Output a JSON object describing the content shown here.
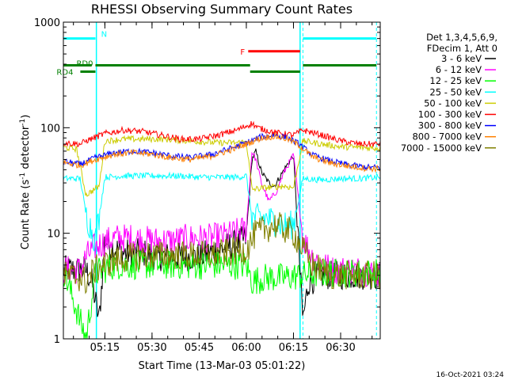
{
  "chart_data": {
    "type": "line",
    "title": "RHESSI Observing Summary Count Rates",
    "xlabel": "Start Time (13-Mar-03 05:01:22)",
    "ylabel_parts": [
      "Count Rate (s",
      "-1",
      " detector",
      "-1",
      ")"
    ],
    "yscale": "log",
    "ylim": [
      1,
      1000
    ],
    "xlim_minutes": [
      5.03,
      6.71
    ],
    "x_tick_labels": [
      "05:15",
      "05:30",
      "05:45",
      "06:00",
      "06:15",
      "06:30"
    ],
    "y_tick_labels": [
      "1",
      "10",
      "100",
      "1000"
    ],
    "legend_header": [
      "Det 1,3,4,5,6,9,",
      "FDecim 1, Att 0"
    ],
    "series": [
      {
        "name": "3 - 6 keV",
        "color": "#000000",
        "points": [
          [
            5.03,
            4.5
          ],
          [
            5.15,
            4.5
          ],
          [
            5.18,
            3.5
          ],
          [
            5.22,
            1.5
          ],
          [
            5.25,
            9
          ],
          [
            5.28,
            7.5
          ],
          [
            5.35,
            6.5
          ],
          [
            5.45,
            6.5
          ],
          [
            5.55,
            6
          ],
          [
            5.65,
            6
          ],
          [
            5.75,
            6
          ],
          [
            5.85,
            7
          ],
          [
            5.95,
            8
          ],
          [
            6.0,
            9
          ],
          [
            6.03,
            50
          ],
          [
            6.05,
            60
          ],
          [
            6.08,
            38
          ],
          [
            6.12,
            30
          ],
          [
            6.15,
            28
          ],
          [
            6.2,
            40
          ],
          [
            6.25,
            55
          ],
          [
            6.3,
            1.5
          ],
          [
            6.33,
            3.5
          ],
          [
            6.4,
            4
          ],
          [
            6.5,
            4
          ],
          [
            6.6,
            4
          ],
          [
            6.71,
            4
          ]
        ]
      },
      {
        "name": "6 - 12 keV",
        "color": "#ff00ff",
        "points": [
          [
            5.03,
            4.5
          ],
          [
            5.12,
            4.5
          ],
          [
            5.15,
            6
          ],
          [
            5.2,
            7.5
          ],
          [
            5.3,
            9
          ],
          [
            5.4,
            9
          ],
          [
            5.5,
            8.5
          ],
          [
            5.6,
            8.5
          ],
          [
            5.7,
            9
          ],
          [
            5.8,
            9
          ],
          [
            5.9,
            9.5
          ],
          [
            6.0,
            11
          ],
          [
            6.03,
            60
          ],
          [
            6.05,
            50
          ],
          [
            6.08,
            30
          ],
          [
            6.12,
            20
          ],
          [
            6.16,
            25
          ],
          [
            6.2,
            38
          ],
          [
            6.25,
            55
          ],
          [
            6.3,
            9
          ],
          [
            6.35,
            6
          ],
          [
            6.45,
            4.5
          ],
          [
            6.6,
            4.5
          ],
          [
            6.71,
            4
          ]
        ]
      },
      {
        "name": "12 - 25 keV",
        "color": "#00ff00",
        "points": [
          [
            5.03,
            4.5
          ],
          [
            5.15,
            1
          ],
          [
            5.2,
            4.2
          ],
          [
            5.3,
            5
          ],
          [
            5.4,
            5
          ],
          [
            5.5,
            5
          ],
          [
            5.6,
            5
          ],
          [
            5.7,
            5
          ],
          [
            5.8,
            5
          ],
          [
            5.9,
            5
          ],
          [
            6.0,
            5
          ],
          [
            6.03,
            3.5
          ],
          [
            6.1,
            3.8
          ],
          [
            6.2,
            3.8
          ],
          [
            6.3,
            4
          ],
          [
            6.4,
            4.2
          ],
          [
            6.5,
            4.2
          ],
          [
            6.6,
            4.2
          ],
          [
            6.71,
            4.2
          ]
        ]
      },
      {
        "name": "25 - 50 keV",
        "color": "#00ffff",
        "points": [
          [
            5.03,
            33
          ],
          [
            5.12,
            33
          ],
          [
            5.15,
            15
          ],
          [
            5.2,
            8.5
          ],
          [
            5.25,
            34
          ],
          [
            5.35,
            35
          ],
          [
            5.45,
            35
          ],
          [
            5.55,
            35
          ],
          [
            5.65,
            35
          ],
          [
            5.75,
            34
          ],
          [
            5.85,
            34
          ],
          [
            5.95,
            34
          ],
          [
            6.0,
            35
          ],
          [
            6.03,
            14
          ],
          [
            6.1,
            14
          ],
          [
            6.2,
            12
          ],
          [
            6.25,
            12
          ],
          [
            6.3,
            33
          ],
          [
            6.4,
            32
          ],
          [
            6.5,
            33
          ],
          [
            6.6,
            33
          ],
          [
            6.71,
            34
          ]
        ]
      },
      {
        "name": "50 - 100 keV",
        "color": "#cccc00",
        "points": [
          [
            5.03,
            65
          ],
          [
            5.1,
            63
          ],
          [
            5.15,
            23
          ],
          [
            5.22,
            28
          ],
          [
            5.25,
            75
          ],
          [
            5.35,
            78
          ],
          [
            5.45,
            78
          ],
          [
            5.55,
            78
          ],
          [
            5.65,
            76
          ],
          [
            5.75,
            74
          ],
          [
            5.85,
            72
          ],
          [
            5.95,
            72
          ],
          [
            6.0,
            74
          ],
          [
            6.03,
            26
          ],
          [
            6.1,
            27
          ],
          [
            6.2,
            28
          ],
          [
            6.25,
            27
          ],
          [
            6.3,
            75
          ],
          [
            6.4,
            70
          ],
          [
            6.5,
            66
          ],
          [
            6.6,
            65
          ],
          [
            6.71,
            64
          ]
        ]
      },
      {
        "name": "100 - 300 keV",
        "color": "#ff0000",
        "points": [
          [
            5.03,
            72
          ],
          [
            5.12,
            70
          ],
          [
            5.15,
            75
          ],
          [
            5.25,
            88
          ],
          [
            5.35,
            95
          ],
          [
            5.45,
            92
          ],
          [
            5.55,
            85
          ],
          [
            5.65,
            78
          ],
          [
            5.75,
            78
          ],
          [
            5.85,
            85
          ],
          [
            5.95,
            95
          ],
          [
            6.03,
            110
          ],
          [
            6.06,
            100
          ],
          [
            6.15,
            90
          ],
          [
            6.25,
            85
          ],
          [
            6.3,
            95
          ],
          [
            6.4,
            85
          ],
          [
            6.5,
            75
          ],
          [
            6.6,
            70
          ],
          [
            6.71,
            70
          ]
        ]
      },
      {
        "name": "300 - 800 keV",
        "color": "#0000ff",
        "points": [
          [
            5.03,
            48
          ],
          [
            5.12,
            45
          ],
          [
            5.2,
            52
          ],
          [
            5.3,
            58
          ],
          [
            5.4,
            60
          ],
          [
            5.5,
            58
          ],
          [
            5.6,
            54
          ],
          [
            5.7,
            52
          ],
          [
            5.8,
            55
          ],
          [
            5.9,
            62
          ],
          [
            6.0,
            72
          ],
          [
            6.08,
            82
          ],
          [
            6.15,
            85
          ],
          [
            6.22,
            80
          ],
          [
            6.28,
            70
          ],
          [
            6.35,
            55
          ],
          [
            6.45,
            48
          ],
          [
            6.55,
            44
          ],
          [
            6.65,
            42
          ],
          [
            6.71,
            42
          ]
        ]
      },
      {
        "name": "800 - 7000 keV",
        "color": "#ff8000",
        "points": [
          [
            5.03,
            47
          ],
          [
            5.12,
            44
          ],
          [
            5.2,
            50
          ],
          [
            5.3,
            56
          ],
          [
            5.4,
            58
          ],
          [
            5.5,
            56
          ],
          [
            5.6,
            52
          ],
          [
            5.7,
            50
          ],
          [
            5.8,
            53
          ],
          [
            5.9,
            60
          ],
          [
            6.0,
            70
          ],
          [
            6.08,
            80
          ],
          [
            6.15,
            83
          ],
          [
            6.22,
            78
          ],
          [
            6.28,
            68
          ],
          [
            6.35,
            53
          ],
          [
            6.45,
            46
          ],
          [
            6.55,
            43
          ],
          [
            6.65,
            41
          ],
          [
            6.71,
            41
          ]
        ]
      },
      {
        "name": "7000 - 15000 keV",
        "color": "#808000",
        "points": [
          [
            5.03,
            4
          ],
          [
            5.12,
            3.8
          ],
          [
            5.15,
            3.5
          ],
          [
            5.18,
            4.2
          ],
          [
            5.22,
            4.8
          ],
          [
            5.3,
            5.5
          ],
          [
            5.4,
            6
          ],
          [
            5.5,
            6.2
          ],
          [
            5.6,
            6.2
          ],
          [
            5.7,
            6.2
          ],
          [
            5.8,
            6.2
          ],
          [
            5.9,
            6.5
          ],
          [
            6.0,
            7
          ],
          [
            6.05,
            10
          ],
          [
            6.1,
            11
          ],
          [
            6.15,
            12
          ],
          [
            6.2,
            11
          ],
          [
            6.25,
            10
          ],
          [
            6.3,
            7
          ],
          [
            6.35,
            5
          ],
          [
            6.45,
            4
          ],
          [
            6.6,
            4
          ],
          [
            6.71,
            4
          ]
        ]
      }
    ],
    "night_vlines_minutes": [
      5.205,
      6.285
    ],
    "saa_vlines_minutes": [
      5.03,
      6.3,
      6.69
    ],
    "flag_bars": [
      {
        "label": "N",
        "color": "#00ffff",
        "y_level": 700,
        "segments": [
          [
            5.03,
            5.2
          ],
          [
            6.3,
            6.69
          ]
        ]
      },
      {
        "label": "F",
        "color": "#ff0000",
        "y_level": 530,
        "segments": [
          [
            6.01,
            6.285
          ]
        ]
      },
      {
        "label": "RD0",
        "color": "#008000",
        "y_level": 390,
        "segments": [
          [
            5.03,
            5.18
          ],
          [
            5.2,
            6.02
          ],
          [
            6.3,
            6.69
          ]
        ]
      },
      {
        "label": "RD4",
        "color": "#008000",
        "y_level": 340,
        "segments": [
          [
            5.12,
            5.2
          ],
          [
            6.02,
            6.285
          ]
        ]
      }
    ],
    "grid": false,
    "legend_placement": "right"
  },
  "footer": {
    "timestamp": "16-Oct-2021 03:24"
  }
}
